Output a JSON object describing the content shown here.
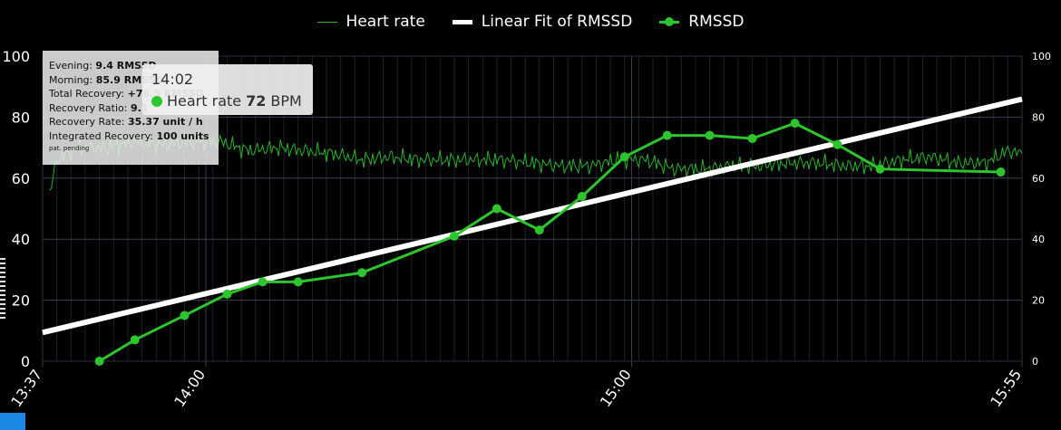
{
  "legend": [
    {
      "name": "Heart rate",
      "style": "thin-line"
    },
    {
      "name": "Linear Fit of RMSSD",
      "style": "thick-line"
    },
    {
      "name": "RMSSD",
      "style": "line-marker"
    }
  ],
  "summary": {
    "evening_label": "Evening:",
    "evening_value": "9.4 RMSSD",
    "morning_label": "Morning:",
    "morning_value": "85.9 RMSSD",
    "total_label": "Total Recovery:",
    "total_value": "+76.5 RMSSD",
    "ratio_label": "Recovery Ratio:",
    "ratio_value": "9.1",
    "rate_label": "Recovery Rate:",
    "rate_value": "35.37 unit / h",
    "integrated_label": "Integrated Recovery:",
    "integrated_value": "100 units",
    "note": "pat. pending"
  },
  "tooltip": {
    "time": "14:02",
    "series": "Heart rate",
    "value": "72",
    "unit": "BPM"
  },
  "colors": {
    "background": "#000000",
    "heart_rate": "#2db22d",
    "rmssd": "#2dc52d",
    "fit": "#ffffff",
    "grid": "#3a4150"
  },
  "chart_data": {
    "type": "line",
    "x_unit": "time (HH:MM)",
    "xlim": [
      "13:37",
      "15:55"
    ],
    "x_ticks": [
      "13:37",
      "14:00",
      "15:00",
      "15:55"
    ],
    "ylim": [
      0,
      100
    ],
    "y_ticks_left": [
      0,
      20,
      40,
      60,
      80,
      100
    ],
    "y_ticks_right": [
      0,
      20,
      40,
      60,
      80,
      100
    ],
    "grid": true,
    "legend_position": "top-center",
    "series": [
      {
        "name": "RMSSD",
        "kind": "line+markers",
        "points": [
          [
            "13:45",
            0
          ],
          [
            "13:50",
            7
          ],
          [
            "13:57",
            15
          ],
          [
            "14:03",
            22
          ],
          [
            "14:08",
            26
          ],
          [
            "14:13",
            26
          ],
          [
            "14:22",
            29
          ],
          [
            "14:35",
            41
          ],
          [
            "14:41",
            50
          ],
          [
            "14:47",
            43
          ],
          [
            "14:53",
            54
          ],
          [
            "14:59",
            67
          ],
          [
            "15:05",
            74
          ],
          [
            "15:11",
            74
          ],
          [
            "15:17",
            73
          ],
          [
            "15:23",
            78
          ],
          [
            "15:29",
            71
          ],
          [
            "15:35",
            63
          ],
          [
            "15:52",
            62
          ]
        ]
      },
      {
        "name": "Linear Fit of RMSSD",
        "kind": "fit-line",
        "points": [
          [
            "13:37",
            9.4
          ],
          [
            "15:55",
            85.9
          ]
        ]
      },
      {
        "name": "Heart rate",
        "kind": "thin-line",
        "points": [
          [
            "13:38",
            55
          ],
          [
            "13:39",
            66
          ],
          [
            "13:42",
            70
          ],
          [
            "13:46",
            70
          ],
          [
            "13:50",
            72
          ],
          [
            "13:54",
            71
          ],
          [
            "13:58",
            72
          ],
          [
            "14:02",
            72
          ],
          [
            "14:06",
            69
          ],
          [
            "14:10",
            70
          ],
          [
            "14:14",
            69
          ],
          [
            "14:18",
            68
          ],
          [
            "14:22",
            66
          ],
          [
            "14:26",
            67
          ],
          [
            "14:30",
            66
          ],
          [
            "14:34",
            66
          ],
          [
            "14:38",
            66
          ],
          [
            "14:42",
            66
          ],
          [
            "14:46",
            65
          ],
          [
            "14:50",
            64
          ],
          [
            "14:54",
            64
          ],
          [
            "14:58",
            66
          ],
          [
            "15:02",
            66
          ],
          [
            "15:06",
            63
          ],
          [
            "15:10",
            63
          ],
          [
            "15:14",
            64
          ],
          [
            "15:18",
            64
          ],
          [
            "15:22",
            65
          ],
          [
            "15:26",
            65
          ],
          [
            "15:30",
            64
          ],
          [
            "15:34",
            64
          ],
          [
            "15:38",
            66
          ],
          [
            "15:42",
            67
          ],
          [
            "15:46",
            65
          ],
          [
            "15:50",
            65
          ],
          [
            "15:53",
            69
          ],
          [
            "15:55",
            68
          ]
        ]
      }
    ]
  }
}
